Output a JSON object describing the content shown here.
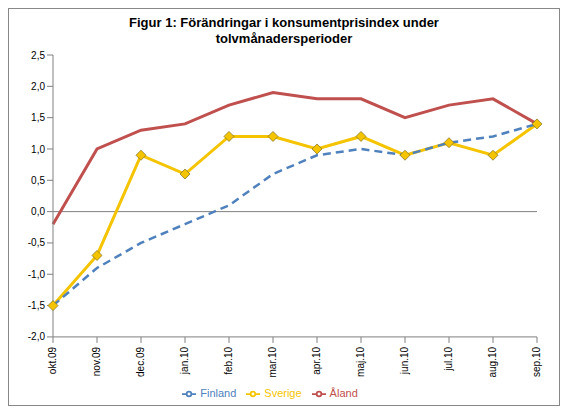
{
  "chart_data": {
    "type": "line",
    "title": "Figur 1: Förändringar i konsumentprisindex under tolvmånadersperioder",
    "categories": [
      "okt.09",
      "nov.09",
      "dec.09",
      "jan.10",
      "feb.10",
      "mar.10",
      "apr.10",
      "maj.10",
      "jun.10",
      "jul.10",
      "aug.10",
      "sep.10"
    ],
    "series": [
      {
        "name": "Sverige",
        "color": "#f5c400",
        "marker": "diamond",
        "line_style": "solid",
        "values": [
          -1.5,
          -0.7,
          0.9,
          0.6,
          1.2,
          1.2,
          1.0,
          1.2,
          0.9,
          1.1,
          0.9,
          1.4
        ]
      },
      {
        "name": "Finland",
        "color": "#4f81bd",
        "marker": "none",
        "line_style": "dashed",
        "values": [
          -1.5,
          -0.9,
          -0.5,
          -0.2,
          0.1,
          0.6,
          0.9,
          1.0,
          0.9,
          1.1,
          1.2,
          1.4
        ]
      },
      {
        "name": "Åland",
        "color": "#c0504d",
        "marker": "none",
        "line_style": "solid",
        "values": [
          -0.2,
          1.0,
          1.3,
          1.4,
          1.7,
          1.9,
          1.8,
          1.8,
          1.5,
          1.7,
          1.8,
          1.4
        ]
      }
    ],
    "ylim": [
      -2.0,
      2.5
    ],
    "yticks": [
      {
        "value": -2.0,
        "label": "-2,0"
      },
      {
        "value": -1.5,
        "label": "-1,5"
      },
      {
        "value": -1.0,
        "label": "-1,0"
      },
      {
        "value": -0.5,
        "label": "-0,5"
      },
      {
        "value": 0,
        "label": "0,0"
      },
      {
        "value": 0.5,
        "label": "0,5"
      },
      {
        "value": 1.0,
        "label": "1,0"
      },
      {
        "value": 1.5,
        "label": "1,5"
      },
      {
        "value": 2.0,
        "label": "2,0"
      },
      {
        "value": 2.5,
        "label": "2,5"
      }
    ],
    "grid": false,
    "legend": "bottom"
  }
}
